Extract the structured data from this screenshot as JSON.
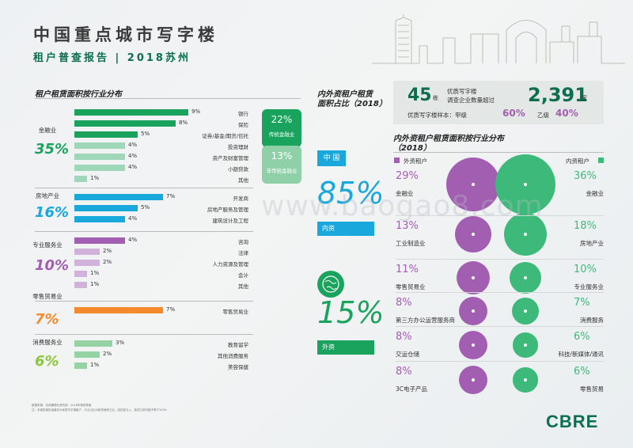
{
  "header": {
    "title": "中国重点城市写字楼",
    "subtitle": "租户普查报告 | 2018苏州"
  },
  "left": {
    "section_title": "租户租赁面积按行业分布",
    "industries": [
      {
        "name": "金融业",
        "pct": "35%",
        "color": "#1aa35d",
        "bars": [
          {
            "label": "银行",
            "value": 9,
            "text": "9%",
            "style": "green"
          },
          {
            "label": "保险",
            "value": 8,
            "text": "8%",
            "style": "green"
          },
          {
            "label": "证券/基金/期货/信托",
            "value": 5,
            "text": "5%",
            "style": "green"
          },
          {
            "label": "投资理财",
            "value": 4,
            "text": "4%",
            "style": "light"
          },
          {
            "label": "资产及财富管理",
            "value": 4,
            "text": "4%",
            "style": "light"
          },
          {
            "label": "小额贷款",
            "value": 4,
            "text": "4%",
            "style": "light"
          },
          {
            "label": "其他",
            "value": 1,
            "text": "1%",
            "style": "light"
          }
        ]
      },
      {
        "name": "房地产业",
        "pct": "16%",
        "color": "#19a8dc",
        "bars": [
          {
            "label": "开发商",
            "value": 7,
            "text": "7%",
            "style": "blue"
          },
          {
            "label": "房地产服务及管理",
            "value": 5,
            "text": "5%",
            "style": "blue"
          },
          {
            "label": "建筑设计及工程",
            "value": 4,
            "text": "4%",
            "style": "blue"
          }
        ]
      },
      {
        "name": "专业服务业",
        "pct": "10%",
        "color": "#a25fb2",
        "bars": [
          {
            "label": "咨询",
            "value": 4,
            "text": "4%",
            "style": "purple"
          },
          {
            "label": "法律",
            "value": 2,
            "text": "2%",
            "style": "light-purple"
          },
          {
            "label": "人力资源及管理",
            "value": 2,
            "text": "2%",
            "style": "light-purple"
          },
          {
            "label": "会计",
            "value": 1,
            "text": "1%",
            "style": "light-purple"
          },
          {
            "label": "其他",
            "value": 1,
            "text": "1%",
            "style": "light-purple"
          }
        ]
      },
      {
        "name": "零售贸易业",
        "pct": "7%",
        "color": "#f48a2c",
        "bars": [
          {
            "label": "零售贸易业",
            "value": 7,
            "text": "7%",
            "style": "orange"
          }
        ]
      },
      {
        "name": "消费服务业",
        "pct": "6%",
        "color": "#8cc63f",
        "bars": [
          {
            "label": "教育留学",
            "value": 3,
            "text": "3%",
            "style": "lightgreen"
          },
          {
            "label": "其他消费服务",
            "value": 2,
            "text": "2%",
            "style": "lightgreen"
          },
          {
            "label": "美容保健",
            "value": 1,
            "text": "1%",
            "style": "lightgreen"
          }
        ]
      }
    ],
    "finance_split": {
      "traditional": {
        "value": "22%",
        "label": "传统金融业"
      },
      "non_traditional": {
        "value": "13%",
        "label": "非传统金融业"
      }
    },
    "notes": [
      "数据来源：世邦魏理仕研究部，2018年第四季度",
      "注：本调查报告涵盖苏州优质写字楼租户，行业占比为租赁面积占比，因四舍五入，各项之和可能不等于100%"
    ]
  },
  "mid": {
    "section_title_line1": "内外资租户租赁",
    "section_title_line2": "面积占比（2018）",
    "china_label": "中 国",
    "domestic_pct": "85%",
    "domestic_label": "内资",
    "foreign_pct": "15%",
    "foreign_label": "外资"
  },
  "stats": {
    "buildings": "45",
    "buildings_unit": "栋",
    "desc_line1": "优质写字楼",
    "desc_line2": "调查企业数量超过",
    "companies": "2,391",
    "companies_unit": "家",
    "sample_label": "优质写字楼样本：甲级",
    "grade_a": "60%",
    "grade_b_label": "乙级",
    "grade_b": "40%"
  },
  "right": {
    "section_title_line1": "内外资租户租赁面积按行业分布",
    "section_title_line2": "（2018）",
    "foreign_legend": "外资租户",
    "domestic_legend": "内资租户",
    "foreign_color": "#a25fb2",
    "domestic_color": "#3dba7a",
    "rows": [
      {
        "f_pct": "29%",
        "f_name": "金融业",
        "d_pct": "36%",
        "d_name": "金融业"
      },
      {
        "f_pct": "13%",
        "f_name": "工业制造业",
        "d_pct": "18%",
        "d_name": "房地产业"
      },
      {
        "f_pct": "11%",
        "f_name": "零售贸易业",
        "d_pct": "10%",
        "d_name": "专业服务业"
      },
      {
        "f_pct": "8%",
        "f_name": "第三方办公运营服务商",
        "d_pct": "7%",
        "d_name": "消费服务"
      },
      {
        "f_pct": "8%",
        "f_name": "交运仓储",
        "d_pct": "6%",
        "d_name": "科技/新媒体/通讯"
      },
      {
        "f_pct": "8%",
        "f_name": "3C电子产品",
        "d_pct": "6%",
        "d_name": "零售贸易"
      }
    ]
  },
  "logo": "CBRE",
  "watermark": "www.baogao8.com",
  "chart_data": [
    {
      "type": "bar",
      "title": "租户租赁面积按行业分布",
      "categories": [
        "银行",
        "保险",
        "证券/基金/期货/信托",
        "投资理财",
        "资产及财富管理",
        "小额贷款",
        "其他",
        "开发商",
        "房地产服务及管理",
        "建筑设计及工程",
        "咨询",
        "法律",
        "人力资源及管理",
        "会计",
        "其他",
        "零售贸易业",
        "教育留学",
        "其他消费服务",
        "美容保健"
      ],
      "values": [
        9,
        8,
        5,
        4,
        4,
        4,
        1,
        7,
        5,
        4,
        4,
        2,
        2,
        1,
        1,
        7,
        3,
        2,
        1
      ]
    },
    {
      "type": "bubble",
      "title": "内外资租户租赁面积按行业分布（2018）",
      "series": [
        {
          "name": "外资租户",
          "categories": [
            "金融业",
            "工业制造业",
            "零售贸易业",
            "第三方办公运营服务商",
            "交运仓储",
            "3C电子产品"
          ],
          "values": [
            29,
            13,
            11,
            8,
            8,
            8
          ]
        },
        {
          "name": "内资租户",
          "categories": [
            "金融业",
            "房地产业",
            "专业服务业",
            "消费服务",
            "科技/新媒体/通讯",
            "零售贸易"
          ],
          "values": [
            36,
            18,
            10,
            7,
            6,
            6
          ]
        }
      ]
    }
  ]
}
